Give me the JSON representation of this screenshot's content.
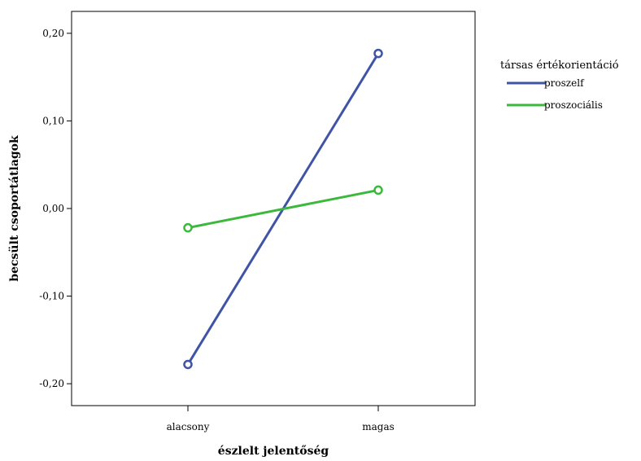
{
  "chart_data": {
    "type": "line",
    "categories": [
      "alacsony",
      "magas"
    ],
    "series": [
      {
        "name": "proszelf",
        "color": "#4054a5",
        "values": [
          -0.178,
          0.177
        ]
      },
      {
        "name": "proszociális",
        "color": "#3cb93c",
        "values": [
          -0.022,
          0.021
        ]
      }
    ],
    "xlabel": "észlelt jelentőség",
    "ylabel": "becsült csoportátlagok",
    "ylim": [
      -0.225,
      0.225
    ],
    "yticks": [
      0.2,
      0.1,
      0.0,
      -0.1,
      -0.2
    ],
    "ytick_labels": [
      "0,20",
      "0,10",
      "0,00",
      "-0,10",
      "-0,20"
    ],
    "legend": {
      "title": "társas értékorientáció",
      "position": "right"
    },
    "grid": false
  }
}
